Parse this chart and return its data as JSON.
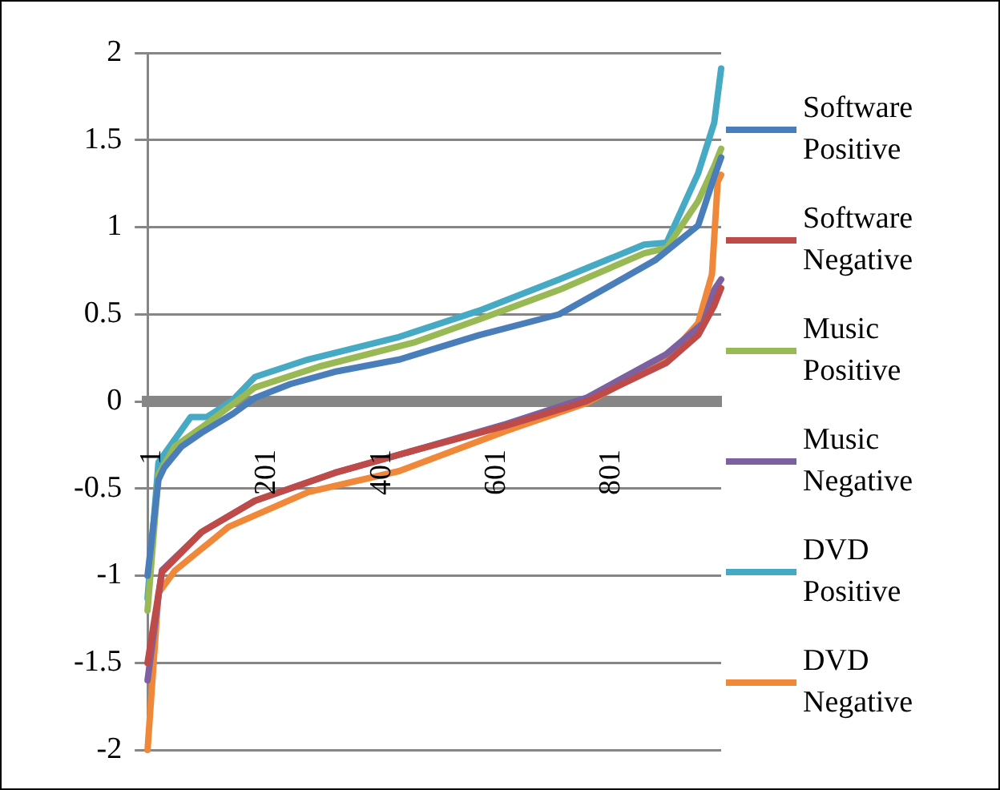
{
  "chart_data": {
    "type": "line",
    "xlim": [
      1,
      1000
    ],
    "xticks": [
      1,
      201,
      401,
      601,
      801
    ],
    "ylim": [
      -2,
      2
    ],
    "yticks": [
      -2,
      -1.5,
      -1,
      -0.5,
      0,
      0.5,
      1,
      1.5,
      2
    ],
    "grid": "y",
    "legend": "right",
    "marker": "none",
    "line_style": "solid",
    "series": [
      {
        "name": "Software Positive",
        "color": "#4a7ebb",
        "x": [
          1,
          20,
          30,
          60,
          95,
          150,
          188,
          250,
          327,
          439,
          578,
          718,
          810,
          885,
          960,
          988,
          1000
        ],
        "values": [
          -1.0,
          -0.45,
          -0.38,
          -0.26,
          -0.18,
          -0.07,
          0.02,
          0.1,
          0.17,
          0.24,
          0.38,
          0.5,
          0.67,
          0.81,
          1.01,
          1.29,
          1.4
        ]
      },
      {
        "name": "Software Negative",
        "color": "#be4b48",
        "x": [
          1,
          26,
          95,
          188,
          327,
          467,
          625,
          765,
          904,
          960,
          988,
          1000
        ],
        "values": [
          -1.5,
          -0.98,
          -0.75,
          -0.57,
          -0.41,
          -0.28,
          -0.14,
          0.0,
          0.22,
          0.38,
          0.55,
          0.65
        ]
      },
      {
        "name": "Music Positive",
        "color": "#98b954",
        "x": [
          1,
          20,
          48,
          95,
          188,
          300,
          467,
          578,
          718,
          866,
          905,
          960,
          988,
          1000
        ],
        "values": [
          -1.2,
          -0.42,
          -0.26,
          -0.15,
          0.08,
          0.2,
          0.34,
          0.47,
          0.64,
          0.85,
          0.88,
          1.15,
          1.35,
          1.45
        ]
      },
      {
        "name": "Music Negative",
        "color": "#7d60a0",
        "x": [
          1,
          26,
          95,
          188,
          327,
          467,
          625,
          765,
          904,
          969,
          988,
          1000
        ],
        "values": [
          -1.6,
          -0.97,
          -0.75,
          -0.57,
          -0.41,
          -0.28,
          -0.13,
          0.02,
          0.27,
          0.45,
          0.64,
          0.7
        ]
      },
      {
        "name": "DVD Positive",
        "color": "#46aac5",
        "x": [
          1,
          20,
          76,
          104,
          147,
          188,
          280,
          439,
          578,
          718,
          866,
          905,
          960,
          988,
          1000
        ],
        "values": [
          -1.13,
          -0.35,
          -0.09,
          -0.09,
          0.0,
          0.14,
          0.24,
          0.37,
          0.52,
          0.7,
          0.9,
          0.91,
          1.31,
          1.6,
          1.91
        ]
      },
      {
        "name": "DVD Negative",
        "color": "#f0883a",
        "x": [
          1,
          20,
          49,
          142,
          281,
          439,
          625,
          765,
          904,
          960,
          984,
          994,
          1000
        ],
        "values": [
          -2.0,
          -1.1,
          -0.97,
          -0.72,
          -0.52,
          -0.4,
          -0.17,
          -0.01,
          0.24,
          0.45,
          0.73,
          1.26,
          1.3
        ]
      }
    ]
  }
}
